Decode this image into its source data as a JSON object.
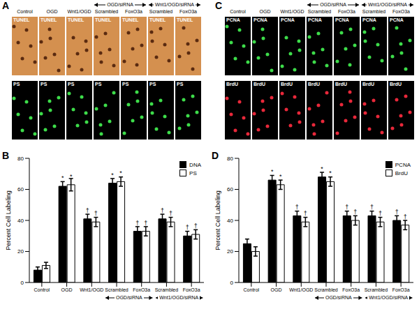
{
  "image_panels": [
    {
      "label": "A",
      "columns": [
        "Control",
        "OGD",
        "Wnt1/OGD",
        "Scrambled",
        "FoxO3a",
        "Scrambled",
        "FoxO3a"
      ],
      "column_groups": [
        null,
        null,
        null,
        "OGD/siRNA",
        "OGD/siRNA",
        "Wnt1/OGD/siRNA",
        "Wnt1/OGD/siRNA"
      ],
      "rows": [
        {
          "label": "TUNEL",
          "colors": [
            "#d4904f",
            "#5a2a10"
          ]
        },
        {
          "label": "PS",
          "colors": [
            "#000000",
            "#3ddc4a"
          ]
        }
      ]
    },
    {
      "label": "C",
      "columns": [
        "Control",
        "OGD",
        "Wnt1/OGD",
        "Scrambled",
        "FoxO3a",
        "Scrambled",
        "FoxO3a"
      ],
      "column_groups": [
        null,
        null,
        null,
        "OGD/siRNA",
        "OGD/siRNA",
        "Wnt1/OGD/siRNA",
        "Wnt1/OGD/siRNA"
      ],
      "rows": [
        {
          "label": "PCNA",
          "colors": [
            "#000000",
            "#3ddc4a"
          ]
        },
        {
          "label": "BrdU",
          "colors": [
            "#000000",
            "#e8283a"
          ]
        }
      ]
    }
  ],
  "chart_data": [
    {
      "label": "B",
      "type": "bar",
      "categories": [
        "Control",
        "OGD",
        "Wnt1/OGD",
        "Scrambled",
        "FoxO3a",
        "Scrambled",
        "FoxO3a"
      ],
      "category_groups": [
        null,
        null,
        null,
        "OGD/siRNA",
        "OGD/siRNA",
        "Wnt1/OGD/siRNA",
        "Wnt1/OGD/siRNA"
      ],
      "y_label": "Percent Cell Labeling",
      "ylim": [
        0,
        80
      ],
      "yticks": [
        0,
        20,
        40,
        60,
        80
      ],
      "legend": "upper right",
      "series": [
        {
          "name": "DNA",
          "color": "#000000",
          "values": [
            8,
            62,
            41,
            64,
            33,
            41,
            30
          ],
          "errors": [
            2,
            3,
            3,
            3,
            3,
            3,
            3
          ],
          "annotations": [
            null,
            "*",
            "†",
            "*",
            "†",
            "†",
            "†"
          ]
        },
        {
          "name": "PS",
          "color": "#ffffff",
          "values": [
            11,
            63,
            39,
            65,
            33,
            39,
            31
          ],
          "errors": [
            2,
            4,
            3,
            3,
            3,
            3,
            3
          ],
          "annotations": [
            null,
            "*",
            "†",
            "*",
            "†",
            "†",
            "†"
          ]
        }
      ]
    },
    {
      "label": "D",
      "type": "bar",
      "categories": [
        "Control",
        "OGD",
        "Wnt1/OGD",
        "Scrambled",
        "FoxO3a",
        "Scrambled",
        "FoxO3a"
      ],
      "category_groups": [
        null,
        null,
        null,
        "OGD/siRNA",
        "OGD/siRNA",
        "Wnt1/OGD/siRNA",
        "Wnt1/OGD/siRNA"
      ],
      "y_label": "Percent Cell Labeling",
      "ylim": [
        0,
        80
      ],
      "yticks": [
        0,
        20,
        40,
        60,
        80
      ],
      "legend": "upper right",
      "series": [
        {
          "name": "PCNA",
          "color": "#000000",
          "values": [
            25,
            66,
            43,
            68,
            43,
            43,
            40
          ],
          "errors": [
            3,
            3,
            3,
            3,
            3,
            3,
            3
          ],
          "annotations": [
            null,
            "*",
            "†",
            "*",
            "†",
            "†",
            "†"
          ]
        },
        {
          "name": "BrdU",
          "color": "#ffffff",
          "values": [
            20,
            63,
            39,
            65,
            40,
            39,
            37
          ],
          "errors": [
            3,
            3,
            3,
            3,
            3,
            3,
            3
          ],
          "annotations": [
            null,
            "*",
            "†",
            "*",
            "†",
            "†",
            "†"
          ]
        }
      ]
    }
  ]
}
